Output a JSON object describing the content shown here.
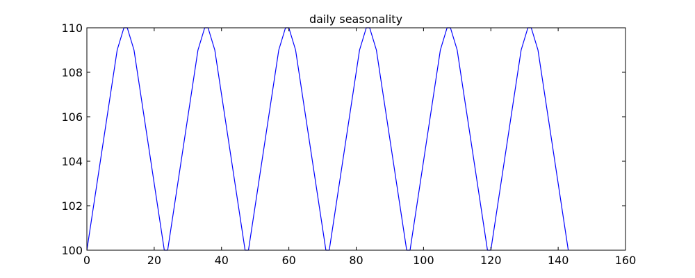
{
  "chart_data": {
    "type": "line",
    "title": "daily seasonality",
    "xlabel": "",
    "ylabel": "",
    "xlim": [
      0,
      160
    ],
    "ylim": [
      100,
      110
    ],
    "xticks": [
      0,
      20,
      40,
      60,
      80,
      100,
      120,
      140,
      160
    ],
    "yticks": [
      100,
      102,
      104,
      106,
      108,
      110
    ],
    "grid": false,
    "line_color": "#0000ff",
    "series": [
      {
        "x": [
          0,
          9,
          11,
          12,
          14,
          23,
          24,
          33,
          35,
          36,
          38,
          47,
          48,
          57,
          59,
          60,
          62,
          71,
          72,
          81,
          83,
          84,
          86,
          95,
          96,
          105,
          107,
          108,
          110,
          119,
          120,
          129,
          131,
          132,
          134,
          143
        ],
        "values": [
          100,
          109,
          110,
          110,
          109,
          100,
          100,
          109,
          110,
          110,
          109,
          100,
          100,
          109,
          110,
          110,
          109,
          100,
          100,
          109,
          110,
          110,
          109,
          100,
          100,
          109,
          110,
          110,
          109,
          100,
          100,
          109,
          110,
          110,
          109,
          100
        ]
      }
    ]
  }
}
